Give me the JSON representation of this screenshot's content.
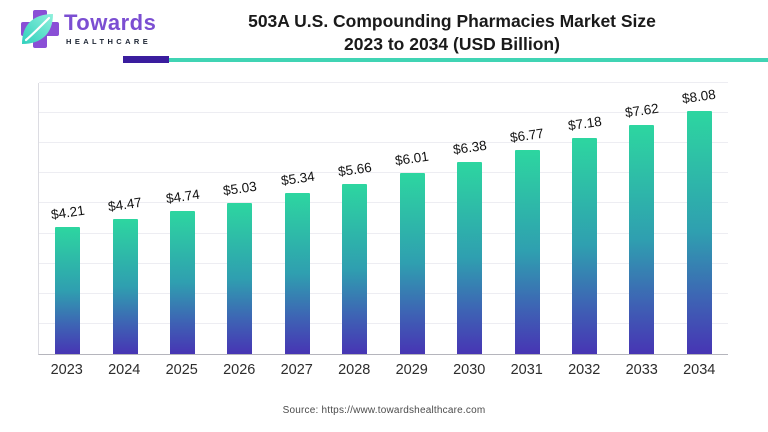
{
  "logo": {
    "brand": "Towards",
    "brand_sub": "HEALTHCARE"
  },
  "header": {
    "title_line1": "503A U.S. Compounding Pharmacies Market Size",
    "title_line2": "2023 to 2034 (USD Billion)"
  },
  "footer": {
    "source": "Source: https://www.towardshealthcare.com"
  },
  "chart_data": {
    "type": "bar",
    "title": "503A U.S. Compounding Pharmacies Market Size 2023 to 2034 (USD Billion)",
    "categories": [
      "2023",
      "2024",
      "2025",
      "2026",
      "2027",
      "2028",
      "2029",
      "2030",
      "2031",
      "2032",
      "2033",
      "2034"
    ],
    "values": [
      4.21,
      4.47,
      4.74,
      5.03,
      5.34,
      5.66,
      6.01,
      6.38,
      6.77,
      7.18,
      7.62,
      8.08
    ],
    "data_labels": [
      "$4.21",
      "$4.47",
      "$4.74",
      "$5.03",
      "$5.34",
      "$5.66",
      "$6.01",
      "$6.38",
      "$6.77",
      "$7.18",
      "$7.62",
      "$8.08"
    ],
    "xlabel": "",
    "ylabel": "",
    "ylim": [
      0,
      9
    ],
    "grid": "horizontal",
    "legend": "none",
    "bar_gradient_top_to_bottom": [
      "#2DD6A0",
      "#2F9FB0",
      "#3E62B4",
      "#4735B4"
    ]
  },
  "colors": {
    "accent_purple": "#3A1D9E",
    "accent_teal": "#40D4B4",
    "logo_cross_purple": "#8A4FD6",
    "leaf_teal_dark": "#2FD0BC",
    "leaf_teal_light": "#8FF0DC",
    "title_text": "#1A1A1A",
    "source_text": "#4B4B4B"
  }
}
